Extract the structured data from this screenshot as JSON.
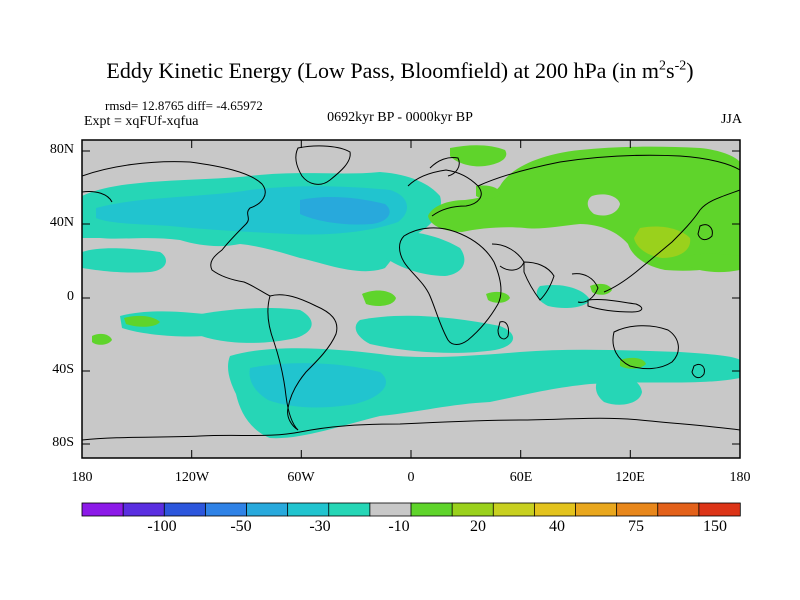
{
  "title": "Eddy Kinetic Energy (Low Pass, Bloomfield) at 200 hPa (in m",
  "title_units": {
    "sup1": "2",
    "mid": "s",
    "sup2": "-2",
    "close": ")"
  },
  "stats_text": "rmsd= 12.8765 diff= -4.65972",
  "expt_text": "Expt = xqFUf-xqfua",
  "period_text": "0692kyr BP - 0000kyr BP",
  "season_text": "JJA",
  "lat_labels": [
    "80N",
    "40N",
    "0",
    "40S",
    "80S"
  ],
  "lon_labels": [
    "180",
    "120W",
    "60W",
    "0",
    "60E",
    "120E",
    "180"
  ],
  "colorbar": {
    "labels": [
      "-100",
      "-50",
      "-30",
      "-10",
      "20",
      "40",
      "75",
      "150"
    ],
    "colors": [
      "#8c1ae8",
      "#5a2ee0",
      "#2c56dc",
      "#2f82e6",
      "#28a9dc",
      "#21c4cf",
      "#26d6b6",
      "#c8c8c8",
      "#5fd42b",
      "#9ad11c",
      "#c8d020",
      "#e3c31d",
      "#e9a71e",
      "#e8871b",
      "#e3611a",
      "#dc3417"
    ]
  },
  "palette": {
    "background": "#c8c8c8",
    "neg_light": "#26d6b6",
    "neg_mid": "#21c4cf",
    "neg_deep": "#28a9dc",
    "pos_light": "#5fd42b",
    "pos_mid": "#9ad11c",
    "pos_high": "#c8d020"
  }
}
